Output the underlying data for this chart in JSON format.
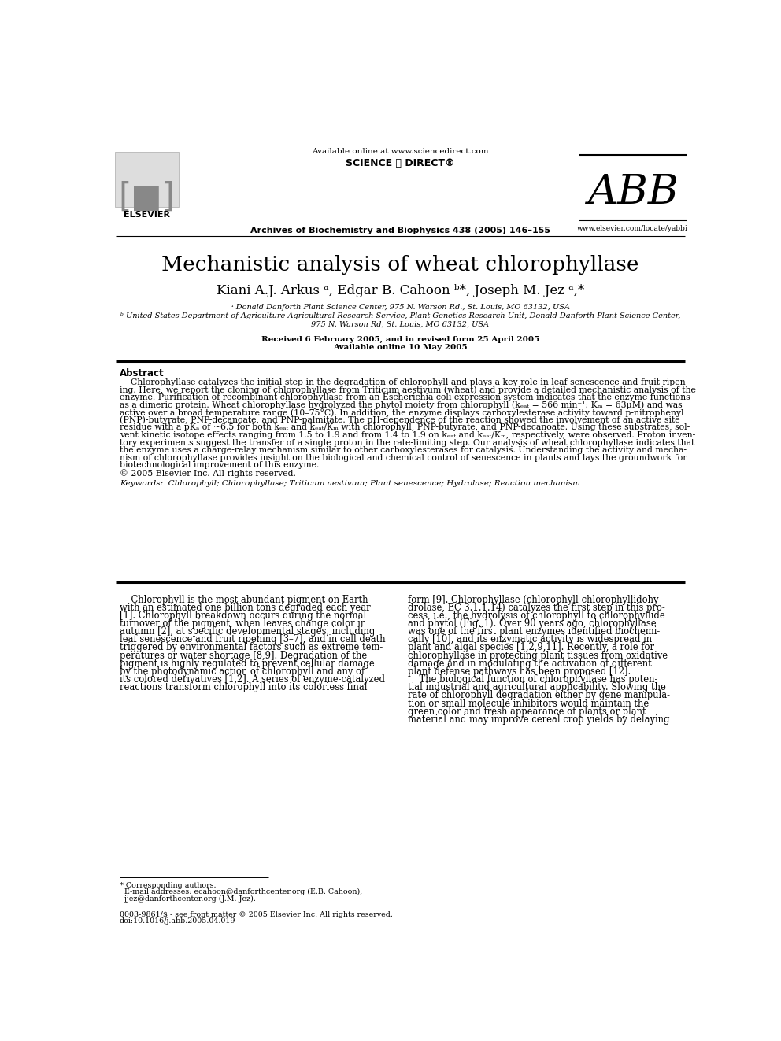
{
  "bg_color": "#ffffff",
  "header": {
    "available_online": "Available online at www.sciencedirect.com",
    "journal": "Archives of Biochemistry and Biophysics 438 (2005) 146–155",
    "elsevier_text": "ELSEVIER",
    "abb_text": "ABB",
    "sciencedirect_text": "SCIENCE ⓐ DIRECT®",
    "www_text": "www.elsevier.com/locate/yabbi"
  },
  "title": "Mechanistic analysis of wheat chlorophyllase",
  "authors": "Kiani A.J. Arkus ᵃ, Edgar B. Cahoon ᵇ*, Joseph M. Jez ᵃ,*",
  "affiliations": [
    "ᵃ Donald Danforth Plant Science Center, 975 N. Warson Rd., St. Louis, MO 63132, USA",
    "ᵇ United States Department of Agriculture-Agricultural Research Service, Plant Genetics Research Unit, Donald Danforth Plant Science Center,",
    "975 N. Warson Rd, St. Louis, MO 63132, USA"
  ],
  "received": "Received 6 February 2005, and in revised form 25 April 2005",
  "available": "Available online 10 May 2005",
  "abstract_title": "Abstract",
  "abstract_lines": [
    "    Chlorophyllase catalyzes the initial step in the degradation of chlorophyll and plays a key role in leaf senescence and fruit ripen-",
    "ing. Here, we report the cloning of chlorophyllase from Triticum aestivum (wheat) and provide a detailed mechanistic analysis of the",
    "enzyme. Purification of recombinant chlorophyllase from an Escherichia coli expression system indicates that the enzyme functions",
    "as a dimeric protein. Wheat chlorophyllase hydrolyzed the phytol moiety from chlorophyll (kₑₐₜ = 566 min⁻¹; Kₘ = 63μM) and was",
    "active over a broad temperature range (10–75°C). In addition, the enzyme displays carboxylesterase activity toward p-nitrophenyl",
    "(PNP)-butyrate, PNP-decanoate, and PNP-palmitate. The pH-dependence of the reaction showed the involvement of an active site",
    "residue with a pKₐ of ~6.5 for both kₑₐₜ and kₑₐₜ/Kₘ with chlorophyll, PNP-butyrate, and PNP-decanoate. Using these substrates, sol-",
    "vent kinetic isotope effects ranging from 1.5 to 1.9 and from 1.4 to 1.9 on kₑₐₜ and kₑₐₜ/Kₘ, respectively, were observed. Proton inven-",
    "tory experiments suggest the transfer of a single proton in the rate-limiting step. Our analysis of wheat chlorophyllase indicates that",
    "the enzyme uses a charge-relay mechanism similar to other carboxylesterases for catalysis. Understanding the activity and mecha-",
    "nism of chlorophyllase provides insight on the biological and chemical control of senescence in plants and lays the groundwork for",
    "biotechnological improvement of this enzyme.",
    "© 2005 Elsevier Inc. All rights reserved."
  ],
  "keywords": "Keywords:  Chlorophyll; Chlorophyllase; Triticum aestivum; Plant senescence; Hydrolase; Reaction mechanism",
  "col1_lines": [
    "    Chlorophyll is the most abundant pigment on Earth",
    "with an estimated one billion tons degraded each year",
    "[1]. Chlorophyll breakdown occurs during the normal",
    "turnover of the pigment, when leaves change color in",
    "autumn [2], at specific developmental stages, including",
    "leaf senescence and fruit ripening [3–7], and in cell death",
    "triggered by environmental factors such as extreme tem-",
    "peratures or water shortage [8,9]. Degradation of the",
    "pigment is highly regulated to prevent cellular damage",
    "by the photodynamic action of chlorophyll and any of",
    "its colored derivatives [1,2]. A series of enzyme-catalyzed",
    "reactions transform chlorophyll into its colorless final"
  ],
  "col2_lines": [
    "form [9]. Chlorophyllase (chlorophyll-chlorophyllidohy-",
    "drolase, EC 3.1.1.14) catalyzes the first step in this pro-",
    "cess, i.e., the hydrolysis of chlorophyll to chlorophyllide",
    "and phytol (Fig. 1). Over 90 years ago, chlorophyllase",
    "was one of the first plant enzymes identified biochemi-",
    "cally [10], and its enzymatic activity is widespread in",
    "plant and algal species [1,2,9,11]. Recently, a role for",
    "chlorophyllase in protecting plant tissues from oxidative",
    "damage and in modulating the activation of different",
    "plant defense pathways has been proposed [12].",
    "    The biological function of chlorophyllase has poten-",
    "tial industrial and agricultural applicability. Slowing the",
    "rate of chlorophyll degradation either by gene manipula-",
    "tion or small molecule inhibitors would maintain the",
    "green color and fresh appearance of plants or plant",
    "material and may improve cereal crop yields by delaying"
  ],
  "footnote_lines": [
    "* Corresponding authors.",
    "  E-mail addresses: ecahoon@danforthcenter.org (E.B. Cahoon),",
    "  jjez@danforthcenter.org (J.M. Jez)."
  ],
  "footnote2_lines": [
    "0003-9861/$ - see front matter © 2005 Elsevier Inc. All rights reserved.",
    "doi:10.1016/j.abb.2005.04.019"
  ]
}
